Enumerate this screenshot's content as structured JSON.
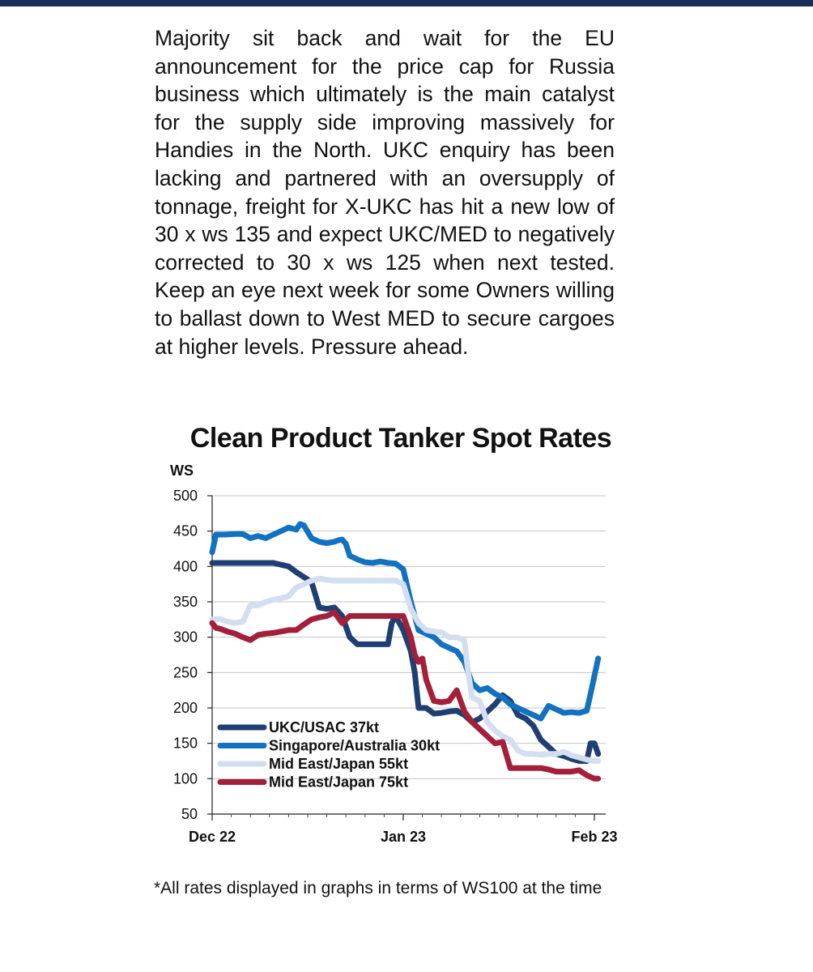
{
  "header": {
    "bar_color": "#1b2b5c"
  },
  "report": {
    "paragraph": "Majority sit back and wait for the EU announcement for the price cap for Russia business which ultimately is the main catalyst for the supply side improving massively for Handies in the North. UKC enquiry has been lacking and partnered with an oversupply of tonnage, freight for X-UKC has hit a new low of 30 x ws 135 and expect UKC/MED to negatively corrected to 30 x ws 125 when next tested. Keep an eye next week for some Owners willing to ballast down to West MED to secure cargoes at higher levels. Pressure ahead."
  },
  "footnote": "*All rates displayed in graphs in terms of WS100 at the time",
  "chart_data": {
    "type": "line",
    "title": "Clean Product Tanker Spot Rates",
    "ylabel": "WS",
    "xlabel": "",
    "ylim": [
      50,
      500
    ],
    "yticks": [
      50,
      100,
      150,
      200,
      250,
      300,
      350,
      400,
      450,
      500
    ],
    "xlim": [
      0,
      100
    ],
    "xticks": [
      {
        "x": 0,
        "label": "Dec 22"
      },
      {
        "x": 50,
        "label": "Jan 23"
      },
      {
        "x": 100,
        "label": "Feb 23"
      }
    ],
    "grid": true,
    "legend": "bottom-left",
    "series": [
      {
        "name": "UKC/USAC 37kt",
        "color": "#1f3f73",
        "x": [
          0,
          4,
          8,
          12,
          16,
          20,
          22,
          24,
          26,
          28,
          30,
          32,
          34,
          36,
          38,
          40,
          42,
          44,
          46,
          47,
          48,
          50,
          52,
          53,
          54,
          56,
          58,
          60,
          62,
          64,
          66,
          68,
          70,
          72,
          74,
          76,
          78,
          80,
          82,
          84,
          86,
          88,
          90,
          92,
          94,
          96,
          98,
          99,
          100,
          101
        ],
        "values": [
          405,
          405,
          405,
          405,
          405,
          400,
          392,
          385,
          378,
          342,
          340,
          342,
          330,
          300,
          290,
          290,
          290,
          290,
          290,
          320,
          330,
          310,
          280,
          250,
          200,
          200,
          192,
          193,
          195,
          196,
          190,
          180,
          185,
          195,
          205,
          218,
          210,
          190,
          185,
          175,
          155,
          145,
          135,
          132,
          128,
          125,
          125,
          150,
          150,
          135
        ]
      },
      {
        "name": "Singapore/Australia 30kt",
        "color": "#1272c0",
        "x": [
          0,
          1,
          3,
          6,
          8,
          10,
          12,
          14,
          16,
          18,
          20,
          22,
          23,
          24,
          26,
          28,
          30,
          32,
          33,
          34,
          35,
          36,
          38,
          40,
          42,
          44,
          46,
          48,
          50,
          52,
          54,
          56,
          58,
          60,
          62,
          64,
          66,
          68,
          70,
          72,
          74,
          76,
          78,
          80,
          82,
          84,
          86,
          88,
          90,
          92,
          94,
          96,
          98,
          99,
          100,
          101
        ],
        "values": [
          420,
          445,
          445,
          446,
          446,
          440,
          443,
          440,
          445,
          450,
          455,
          452,
          460,
          458,
          440,
          435,
          433,
          435,
          437,
          438,
          432,
          415,
          410,
          406,
          405,
          407,
          405,
          404,
          396,
          350,
          310,
          305,
          300,
          290,
          285,
          280,
          265,
          235,
          225,
          228,
          220,
          215,
          205,
          200,
          195,
          190,
          185,
          203,
          198,
          193,
          194,
          193,
          196,
          220,
          245,
          270
        ]
      },
      {
        "name": "Mid East/Japan 55kt",
        "color": "#d3def0",
        "x": [
          0,
          2,
          4,
          6,
          8,
          10,
          12,
          14,
          16,
          18,
          20,
          22,
          24,
          26,
          28,
          30,
          32,
          34,
          36,
          38,
          40,
          42,
          44,
          46,
          48,
          50,
          52,
          54,
          56,
          58,
          60,
          62,
          64,
          66,
          67,
          68,
          70,
          72,
          74,
          76,
          78,
          80,
          82,
          84,
          86,
          88,
          90,
          92,
          94,
          96,
          98,
          100,
          101
        ],
        "values": [
          325,
          326,
          322,
          320,
          322,
          345,
          345,
          350,
          353,
          355,
          358,
          370,
          375,
          380,
          383,
          381,
          380,
          380,
          380,
          380,
          380,
          380,
          380,
          380,
          380,
          375,
          340,
          320,
          310,
          308,
          307,
          300,
          300,
          295,
          250,
          215,
          210,
          180,
          168,
          160,
          155,
          140,
          135,
          135,
          134,
          135,
          135,
          138,
          133,
          130,
          127,
          125,
          125
        ]
      },
      {
        "name": "Mid East/Japan 75kt",
        "color": "#a31f3a",
        "x": [
          0,
          1,
          2,
          4,
          6,
          8,
          10,
          12,
          14,
          16,
          18,
          20,
          22,
          24,
          26,
          28,
          30,
          32,
          34,
          36,
          38,
          40,
          42,
          44,
          46,
          48,
          50,
          52,
          53,
          54,
          55,
          56,
          58,
          60,
          62,
          64,
          66,
          68,
          70,
          72,
          74,
          76,
          78,
          80,
          82,
          84,
          86,
          88,
          90,
          92,
          94,
          96,
          98,
          100,
          101
        ],
        "values": [
          320,
          313,
          312,
          308,
          305,
          300,
          296,
          303,
          305,
          306,
          308,
          310,
          310,
          318,
          325,
          328,
          330,
          335,
          320,
          330,
          330,
          330,
          330,
          330,
          330,
          330,
          330,
          300,
          275,
          265,
          270,
          240,
          210,
          208,
          210,
          225,
          195,
          180,
          170,
          160,
          150,
          152,
          115,
          115,
          115,
          115,
          115,
          113,
          110,
          110,
          110,
          112,
          105,
          100,
          100
        ]
      }
    ]
  }
}
